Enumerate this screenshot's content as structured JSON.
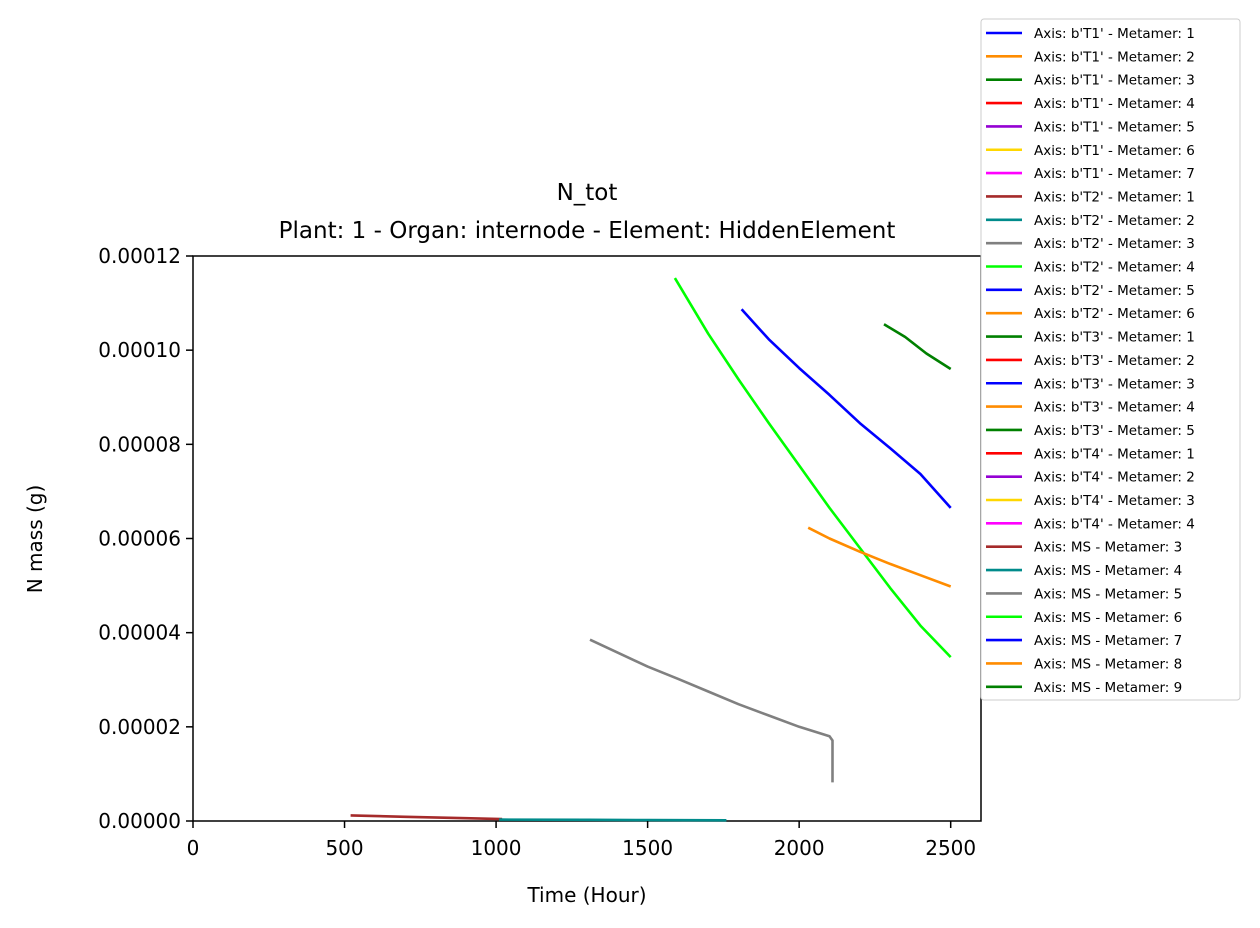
{
  "chart_data": {
    "type": "line",
    "title": "N_tot",
    "subtitle": "Plant: 1 - Organ: internode - Element: HiddenElement",
    "xlabel": "Time (Hour)",
    "ylabel": "N mass (g)",
    "xlim": [
      0,
      2600
    ],
    "ylim": [
      0,
      0.00012
    ],
    "xticks": [
      0,
      500,
      1000,
      1500,
      2000,
      2500
    ],
    "xtick_labels": [
      "0",
      "500",
      "1000",
      "1500",
      "2000",
      "2500"
    ],
    "yticks": [
      0,
      2e-05,
      4e-05,
      6e-05,
      8e-05,
      0.0001,
      0.00012
    ],
    "ytick_labels": [
      "0.00000",
      "0.00002",
      "0.00004",
      "0.00006",
      "0.00008",
      "0.00010",
      "0.00012"
    ],
    "grid": false,
    "legend_position": "outside top-right",
    "series": [
      {
        "name": "Axis: b'T1' - Metamer: 1",
        "color": "#0000ff",
        "points": []
      },
      {
        "name": "Axis: b'T1' - Metamer: 2",
        "color": "#ff8c00",
        "points": []
      },
      {
        "name": "Axis: b'T1' - Metamer: 3",
        "color": "#008000",
        "points": []
      },
      {
        "name": "Axis: b'T1' - Metamer: 4",
        "color": "#ff0000",
        "points": []
      },
      {
        "name": "Axis: b'T1' - Metamer: 5",
        "color": "#9400d3",
        "points": []
      },
      {
        "name": "Axis: b'T1' - Metamer: 6",
        "color": "#ffd700",
        "points": []
      },
      {
        "name": "Axis: b'T1' - Metamer: 7",
        "color": "#ff00ff",
        "points": []
      },
      {
        "name": "Axis: b'T2' - Metamer: 1",
        "color": "#a52a2a",
        "points": []
      },
      {
        "name": "Axis: b'T2' - Metamer: 2",
        "color": "#008b8b",
        "points": []
      },
      {
        "name": "Axis: b'T2' - Metamer: 3",
        "color": "#808080",
        "points": []
      },
      {
        "name": "Axis: b'T2' - Metamer: 4",
        "color": "#00ff00",
        "points": []
      },
      {
        "name": "Axis: b'T2' - Metamer: 5",
        "color": "#0000ff",
        "points": []
      },
      {
        "name": "Axis: b'T2' - Metamer: 6",
        "color": "#ff8c00",
        "points": []
      },
      {
        "name": "Axis: b'T3' - Metamer: 1",
        "color": "#008000",
        "points": []
      },
      {
        "name": "Axis: b'T3' - Metamer: 2",
        "color": "#ff0000",
        "points": []
      },
      {
        "name": "Axis: b'T3' - Metamer: 3",
        "color": "#0000ff",
        "points": []
      },
      {
        "name": "Axis: b'T3' - Metamer: 4",
        "color": "#ff8c00",
        "points": []
      },
      {
        "name": "Axis: b'T3' - Metamer: 5",
        "color": "#008000",
        "points": []
      },
      {
        "name": "Axis: b'T4' - Metamer: 1",
        "color": "#ff0000",
        "points": []
      },
      {
        "name": "Axis: b'T4' - Metamer: 2",
        "color": "#9400d3",
        "points": []
      },
      {
        "name": "Axis: b'T4' - Metamer: 3",
        "color": "#ffd700",
        "points": []
      },
      {
        "name": "Axis: b'T4' - Metamer: 4",
        "color": "#ff00ff",
        "points": []
      },
      {
        "name": "Axis: MS - Metamer: 3",
        "color": "#a52a2a",
        "points": [
          [
            520,
            1.2e-06
          ],
          [
            700,
            9e-07
          ],
          [
            900,
            6e-07
          ],
          [
            1020,
            4e-07
          ]
        ]
      },
      {
        "name": "Axis: MS - Metamer: 4",
        "color": "#008b8b",
        "points": [
          [
            1010,
            3e-07
          ],
          [
            1300,
            2.5e-07
          ],
          [
            1500,
            2e-07
          ],
          [
            1760,
            1.5e-07
          ]
        ]
      },
      {
        "name": "Axis: MS - Metamer: 5",
        "color": "#808080",
        "points": [
          [
            1310,
            3.85e-05
          ],
          [
            1400,
            3.58e-05
          ],
          [
            1500,
            3.28e-05
          ],
          [
            1600,
            3.02e-05
          ],
          [
            1700,
            2.75e-05
          ],
          [
            1800,
            2.48e-05
          ],
          [
            1900,
            2.24e-05
          ],
          [
            2000,
            2e-05
          ],
          [
            2100,
            1.8e-05
          ],
          [
            2110,
            1.71e-05
          ],
          [
            2110,
            8.2e-06
          ]
        ]
      },
      {
        "name": "Axis: MS - Metamer: 6",
        "color": "#00ff00",
        "points": [
          [
            1590,
            0.0001153
          ],
          [
            1700,
            0.0001035
          ],
          [
            1800,
            9.38e-05
          ],
          [
            1900,
            8.45e-05
          ],
          [
            2000,
            7.55e-05
          ],
          [
            2100,
            6.65e-05
          ],
          [
            2200,
            5.8e-05
          ],
          [
            2300,
            4.95e-05
          ],
          [
            2400,
            4.15e-05
          ],
          [
            2500,
            3.48e-05
          ]
        ]
      },
      {
        "name": "Axis: MS - Metamer: 7",
        "color": "#0000ff",
        "points": [
          [
            1810,
            0.0001087
          ],
          [
            1900,
            0.0001023
          ],
          [
            2000,
            9.62e-05
          ],
          [
            2100,
            9.05e-05
          ],
          [
            2200,
            8.45e-05
          ],
          [
            2300,
            7.92e-05
          ],
          [
            2400,
            7.37e-05
          ],
          [
            2500,
            6.65e-05
          ]
        ]
      },
      {
        "name": "Axis: MS - Metamer: 8",
        "color": "#ff8c00",
        "points": [
          [
            2030,
            6.23e-05
          ],
          [
            2100,
            6e-05
          ],
          [
            2200,
            5.72e-05
          ],
          [
            2300,
            5.46e-05
          ],
          [
            2400,
            5.22e-05
          ],
          [
            2500,
            4.98e-05
          ]
        ]
      },
      {
        "name": "Axis: MS - Metamer: 9",
        "color": "#008000",
        "points": [
          [
            2280,
            0.0001055
          ],
          [
            2350,
            0.0001028
          ],
          [
            2420,
            9.93e-05
          ],
          [
            2500,
            9.6e-05
          ]
        ]
      }
    ]
  }
}
